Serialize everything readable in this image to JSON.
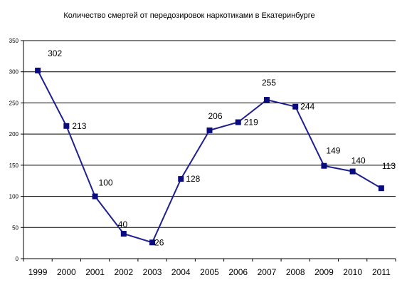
{
  "chart_data": {
    "type": "line",
    "title": "Количество смертей от передозировок наркотиками в Екатеринбурге",
    "categories": [
      "1999",
      "2000",
      "2001",
      "2002",
      "2003",
      "2004",
      "2005",
      "2006",
      "2007",
      "2008",
      "2009",
      "2010",
      "2011"
    ],
    "series": [
      {
        "values": [
          302,
          213,
          100,
          40,
          26,
          128,
          206,
          219,
          255,
          244,
          149,
          140,
          113
        ]
      }
    ],
    "data_labels": [
      "302",
      "213",
      "100",
      "40",
      "26",
      "128",
      "206",
      "219",
      "255",
      "244",
      "149",
      "140",
      "113"
    ],
    "y_ticks": [
      "0",
      "50",
      "100",
      "150",
      "200",
      "250",
      "300",
      "350"
    ],
    "ylim": [
      0,
      350
    ],
    "grid": true,
    "legend": "none",
    "colors": {
      "line": "#1f1f8f",
      "marker": "#0b0b80",
      "grid": "#000000"
    }
  }
}
